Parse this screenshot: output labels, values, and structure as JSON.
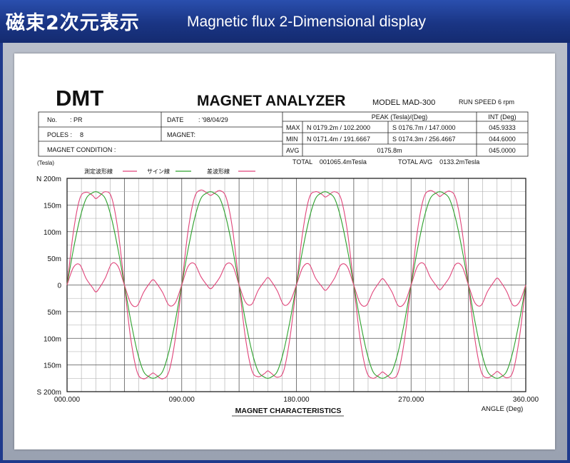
{
  "banner": {
    "title_jp": "磁束2次元表示",
    "title_en": "Magnetic flux 2-Dimensional display"
  },
  "header": {
    "brand": "DMT",
    "title": "MAGNET ANALYZER",
    "model": "MODEL MAD-300",
    "run_speed": "RUN SPEED 6 rpm"
  },
  "info": {
    "no_label": "No.",
    "no_value": ": PR",
    "date_label": "DATE",
    "date_value": ": '98/04/29",
    "poles_label": "POLES :",
    "poles_value": "8",
    "magnet_label": "MAGNET:",
    "condition_label": "MAGNET CONDITION :"
  },
  "peak": {
    "peak_header": "PEAK (Tesla)/(Deg)",
    "int_header": "INT (Deg)",
    "rows": [
      {
        "label": "MAX",
        "n": "N 0179.2m / 102.2000",
        "s": "S 0176.7m / 147.0000",
        "int": "045.9333"
      },
      {
        "label": "MIN",
        "n": "N 0171.4m / 191.6667",
        "s": "S 0174.3m / 256.4667",
        "int": "044.6000"
      },
      {
        "label": "AVG",
        "avg": "0175.8m",
        "int": "045.0000"
      }
    ],
    "total": "TOTAL    001065.4mTesla",
    "total_avg": "TOTAL AVG    0133.2mTesla"
  },
  "legend": {
    "unit": "(Tesla)",
    "items": [
      {
        "label": "測定波形線",
        "color": "#e0457a"
      },
      {
        "label": "サイン線",
        "color": "#2ca02c"
      },
      {
        "label": "差波形線",
        "color": "#e0457a"
      }
    ]
  },
  "chart_data": {
    "type": "line",
    "title": "MAGNET CHARACTERISTICS",
    "xlabel": "ANGLE (Deg)",
    "ylabel": "(Tesla)",
    "xlim": [
      0,
      360
    ],
    "ylim": [
      -200,
      200
    ],
    "x_ticks": [
      "000.000",
      "090.000",
      "180.000",
      "270.000",
      "360.000"
    ],
    "y_ticks": [
      "N  200m",
      "150m",
      "100m",
      "50m",
      "0",
      "50m",
      "100m",
      "150m",
      "S  200m"
    ],
    "grid": true,
    "series": [
      {
        "name": "測定波形線",
        "color": "#e0457a",
        "x": [
          0,
          5,
          10,
          15,
          20,
          22.5,
          25,
          30,
          35,
          40,
          45,
          50,
          55,
          60,
          65,
          67.5,
          70,
          75,
          80,
          85,
          90,
          95,
          100,
          105,
          110,
          112.5,
          115,
          120,
          125,
          130,
          135,
          140,
          145,
          150,
          155,
          157.5,
          160,
          165,
          170,
          175,
          180,
          185,
          190,
          195,
          200,
          202.5,
          205,
          210,
          215,
          220,
          225,
          230,
          235,
          240,
          245,
          247.5,
          250,
          255,
          260,
          265,
          270,
          275,
          280,
          285,
          290,
          292.5,
          295,
          300,
          305,
          310,
          315,
          320,
          325,
          330,
          335,
          337.5,
          340,
          345,
          350,
          355,
          360
        ],
        "y": [
          0,
          100,
          162,
          174,
          168,
          162,
          166,
          175,
          164,
          102,
          0,
          -101,
          -163,
          -176,
          -169,
          -165,
          -169,
          -176,
          -162,
          -100,
          0,
          102,
          164,
          178,
          172,
          168,
          171,
          177,
          163,
          103,
          0,
          -99,
          -160,
          -172,
          -166,
          -161,
          -165,
          -173,
          -161,
          -98,
          0,
          100,
          163,
          175,
          170,
          165,
          168,
          175,
          162,
          101,
          0,
          -101,
          -162,
          -175,
          -168,
          -163,
          -167,
          -175,
          -163,
          -100,
          0,
          102,
          164,
          177,
          171,
          166,
          170,
          176,
          163,
          102,
          0,
          -100,
          -162,
          -174,
          -167,
          -162,
          -166,
          -174,
          -162,
          -99,
          0
        ]
      },
      {
        "name": "サイン線",
        "color": "#2ca02c",
        "x": [
          0,
          5,
          10,
          15,
          20,
          22.5,
          25,
          30,
          35,
          40,
          45,
          50,
          55,
          60,
          65,
          67.5,
          70,
          75,
          80,
          85,
          90,
          95,
          100,
          105,
          110,
          112.5,
          115,
          120,
          125,
          130,
          135,
          140,
          145,
          150,
          155,
          157.5,
          160,
          165,
          170,
          175,
          180,
          185,
          190,
          195,
          200,
          202.5,
          205,
          210,
          215,
          220,
          225,
          230,
          235,
          240,
          245,
          247.5,
          250,
          255,
          260,
          265,
          270,
          275,
          280,
          285,
          290,
          292.5,
          295,
          300,
          305,
          310,
          315,
          320,
          325,
          330,
          335,
          337.5,
          340,
          345,
          350,
          355,
          360
        ],
        "y": [
          0,
          67,
          124,
          162,
          173,
          175,
          173,
          162,
          124,
          67,
          0,
          -67,
          -124,
          -162,
          -173,
          -175,
          -173,
          -162,
          -124,
          -67,
          0,
          67,
          124,
          162,
          173,
          175,
          173,
          162,
          124,
          67,
          0,
          -67,
          -124,
          -162,
          -173,
          -175,
          -173,
          -162,
          -124,
          -67,
          0,
          67,
          124,
          162,
          173,
          175,
          173,
          162,
          124,
          67,
          0,
          -67,
          -124,
          -162,
          -173,
          -175,
          -173,
          -162,
          -124,
          -67,
          0,
          67,
          124,
          162,
          173,
          175,
          173,
          162,
          124,
          67,
          0,
          -67,
          -124,
          -162,
          -173,
          -175,
          -173,
          -162,
          -124,
          -67,
          0
        ]
      },
      {
        "name": "差波形線",
        "color": "#e0457a",
        "x": [
          0,
          5,
          10,
          15,
          20,
          22.5,
          25,
          30,
          35,
          40,
          45,
          50,
          55,
          60,
          65,
          67.5,
          70,
          75,
          80,
          85,
          90,
          95,
          100,
          105,
          110,
          112.5,
          115,
          120,
          125,
          130,
          135,
          140,
          145,
          150,
          155,
          157.5,
          160,
          165,
          170,
          175,
          180,
          185,
          190,
          195,
          200,
          202.5,
          205,
          210,
          215,
          220,
          225,
          230,
          235,
          240,
          245,
          247.5,
          250,
          255,
          260,
          265,
          270,
          275,
          280,
          285,
          290,
          292.5,
          295,
          300,
          305,
          310,
          315,
          320,
          325,
          330,
          335,
          337.5,
          340,
          345,
          350,
          355,
          360
        ],
        "y": [
          0,
          33,
          38,
          12,
          -5,
          -13,
          -7,
          13,
          40,
          35,
          0,
          -34,
          -39,
          -14,
          4,
          10,
          4,
          -14,
          -38,
          -33,
          0,
          35,
          40,
          16,
          -1,
          -7,
          -2,
          15,
          39,
          36,
          0,
          -32,
          -36,
          -10,
          7,
          14,
          8,
          -11,
          -37,
          -31,
          0,
          33,
          39,
          13,
          -3,
          -10,
          -5,
          13,
          38,
          34,
          0,
          -34,
          -38,
          -13,
          5,
          12,
          6,
          -13,
          -39,
          -33,
          0,
          35,
          40,
          15,
          -2,
          -9,
          -3,
          14,
          39,
          35,
          0,
          -33,
          -38,
          -12,
          6,
          13,
          7,
          -12,
          -38,
          -32,
          0
        ]
      }
    ]
  }
}
